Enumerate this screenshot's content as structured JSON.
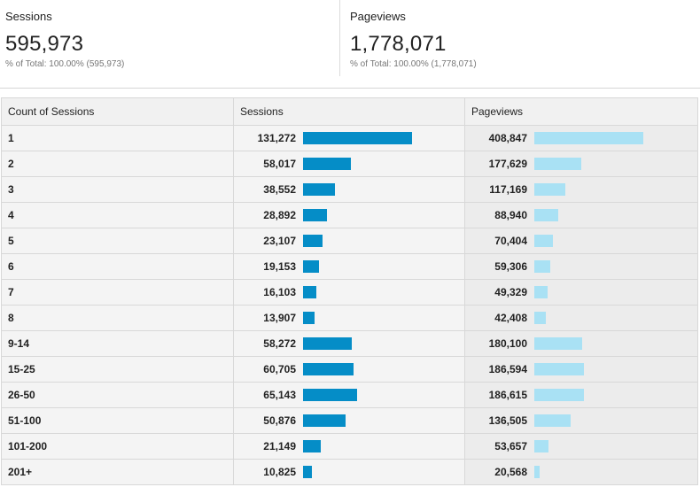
{
  "scorecards": [
    {
      "label": "Sessions",
      "value": "595,973",
      "sub": "% of Total: 100.00% (595,973)"
    },
    {
      "label": "Pageviews",
      "value": "1,778,071",
      "sub": "% of Total: 100.00% (1,778,071)"
    }
  ],
  "table": {
    "headers": [
      "Count of Sessions",
      "Sessions",
      "Pageviews"
    ],
    "rows": [
      {
        "dim": "1",
        "sessions": "131,272",
        "pageviews": "408,847",
        "s": 131272,
        "p": 408847
      },
      {
        "dim": "2",
        "sessions": "58,017",
        "pageviews": "177,629",
        "s": 58017,
        "p": 177629
      },
      {
        "dim": "3",
        "sessions": "38,552",
        "pageviews": "117,169",
        "s": 38552,
        "p": 117169
      },
      {
        "dim": "4",
        "sessions": "28,892",
        "pageviews": "88,940",
        "s": 28892,
        "p": 88940
      },
      {
        "dim": "5",
        "sessions": "23,107",
        "pageviews": "70,404",
        "s": 23107,
        "p": 70404
      },
      {
        "dim": "6",
        "sessions": "19,153",
        "pageviews": "59,306",
        "s": 19153,
        "p": 59306
      },
      {
        "dim": "7",
        "sessions": "16,103",
        "pageviews": "49,329",
        "s": 16103,
        "p": 49329
      },
      {
        "dim": "8",
        "sessions": "13,907",
        "pageviews": "42,408",
        "s": 13907,
        "p": 42408
      },
      {
        "dim": "9-14",
        "sessions": "58,272",
        "pageviews": "180,100",
        "s": 58272,
        "p": 180100
      },
      {
        "dim": "15-25",
        "sessions": "60,705",
        "pageviews": "186,594",
        "s": 60705,
        "p": 186594
      },
      {
        "dim": "26-50",
        "sessions": "65,143",
        "pageviews": "186,615",
        "s": 65143,
        "p": 186615
      },
      {
        "dim": "51-100",
        "sessions": "50,876",
        "pageviews": "136,505",
        "s": 50876,
        "p": 136505
      },
      {
        "dim": "101-200",
        "sessions": "21,149",
        "pageviews": "53,657",
        "s": 21149,
        "p": 53657
      },
      {
        "dim": "201+",
        "sessions": "10,825",
        "pageviews": "20,568",
        "s": 10825,
        "p": 20568
      }
    ]
  },
  "colors": {
    "sessions_bar": "#058dc7",
    "pageviews_bar": "#a9e1f4"
  }
}
